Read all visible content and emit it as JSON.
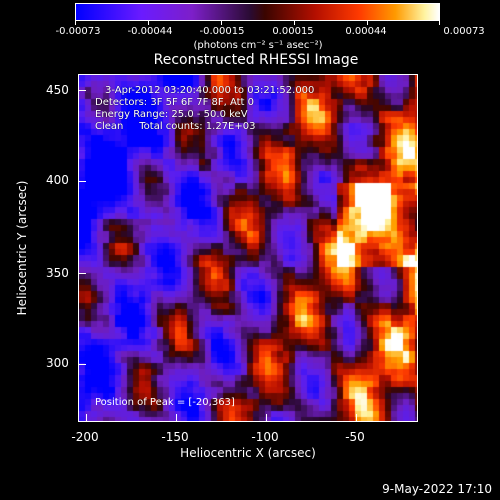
{
  "colorbar": {
    "ticks": [
      "-0.00073",
      "-0.00044",
      "-0.00015",
      "0.00015",
      "0.00044",
      "0.00073"
    ],
    "units": "(photons cm⁻² s⁻¹ asec⁻²)"
  },
  "title": "Reconstructed RHESSI Image",
  "info": {
    "time": "3-Apr-2012 03:20:40.000 to 03:21:52.000",
    "detectors": "Detectors: 3F 5F 6F 7F 8F, Att 0",
    "energy": "Energy Range: 25.0 - 50.0 keV",
    "clean": "Clean     Total counts: 1.27E+03"
  },
  "peak": "Position of Peak = [-20,363]",
  "axes": {
    "xlabel": "Heliocentric X (arcsec)",
    "ylabel": "Heliocentric Y (arcsec)",
    "xticks": [
      "-200",
      "-150",
      "-100",
      "-50"
    ],
    "yticks": [
      "450",
      "400",
      "350",
      "300"
    ],
    "xlim": [
      -210,
      -15
    ],
    "ylim": [
      265,
      460
    ]
  },
  "timestamp": "9-May-2022 17:10"
}
